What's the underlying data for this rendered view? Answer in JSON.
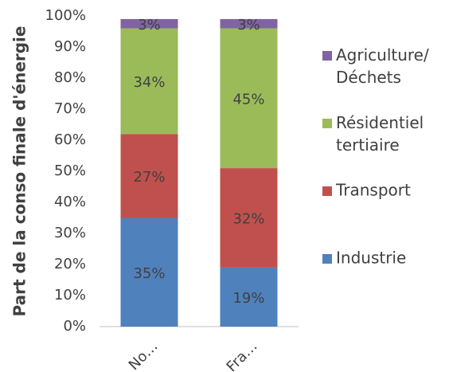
{
  "chart_data": {
    "type": "stacked_bar",
    "y_axis_label": "Part de la conso finale d'énergie",
    "categories": [
      "No…",
      "Fra…"
    ],
    "series": [
      {
        "name": "Industrie",
        "color": "#4f81bd",
        "values": [
          35,
          19
        ],
        "value_labels": [
          "35%",
          "19%"
        ]
      },
      {
        "name": "Transport",
        "color": "#c0504d",
        "values": [
          27,
          32
        ],
        "value_labels": [
          "27%",
          "32%"
        ]
      },
      {
        "name": "Résidentiel tertiaire",
        "color": "#9bbb59",
        "values": [
          34,
          45
        ],
        "value_labels": [
          "34%",
          "45%"
        ]
      },
      {
        "name": "Agriculture/ Déchets",
        "color": "#8064a2",
        "values": [
          3,
          3
        ],
        "value_labels": [
          "3%",
          "3%"
        ]
      }
    ],
    "ylim": [
      0,
      100
    ],
    "yticks": [
      {
        "value": 0,
        "label": "0%"
      },
      {
        "value": 10,
        "label": "10%"
      },
      {
        "value": 20,
        "label": "20%"
      },
      {
        "value": 30,
        "label": "30%"
      },
      {
        "value": 40,
        "label": "40%"
      },
      {
        "value": 50,
        "label": "50%"
      },
      {
        "value": 60,
        "label": "60%"
      },
      {
        "value": 70,
        "label": "70%"
      },
      {
        "value": 80,
        "label": "80%"
      },
      {
        "value": 90,
        "label": "90%"
      },
      {
        "value": 100,
        "label": "100%"
      }
    ],
    "legend": "right"
  }
}
